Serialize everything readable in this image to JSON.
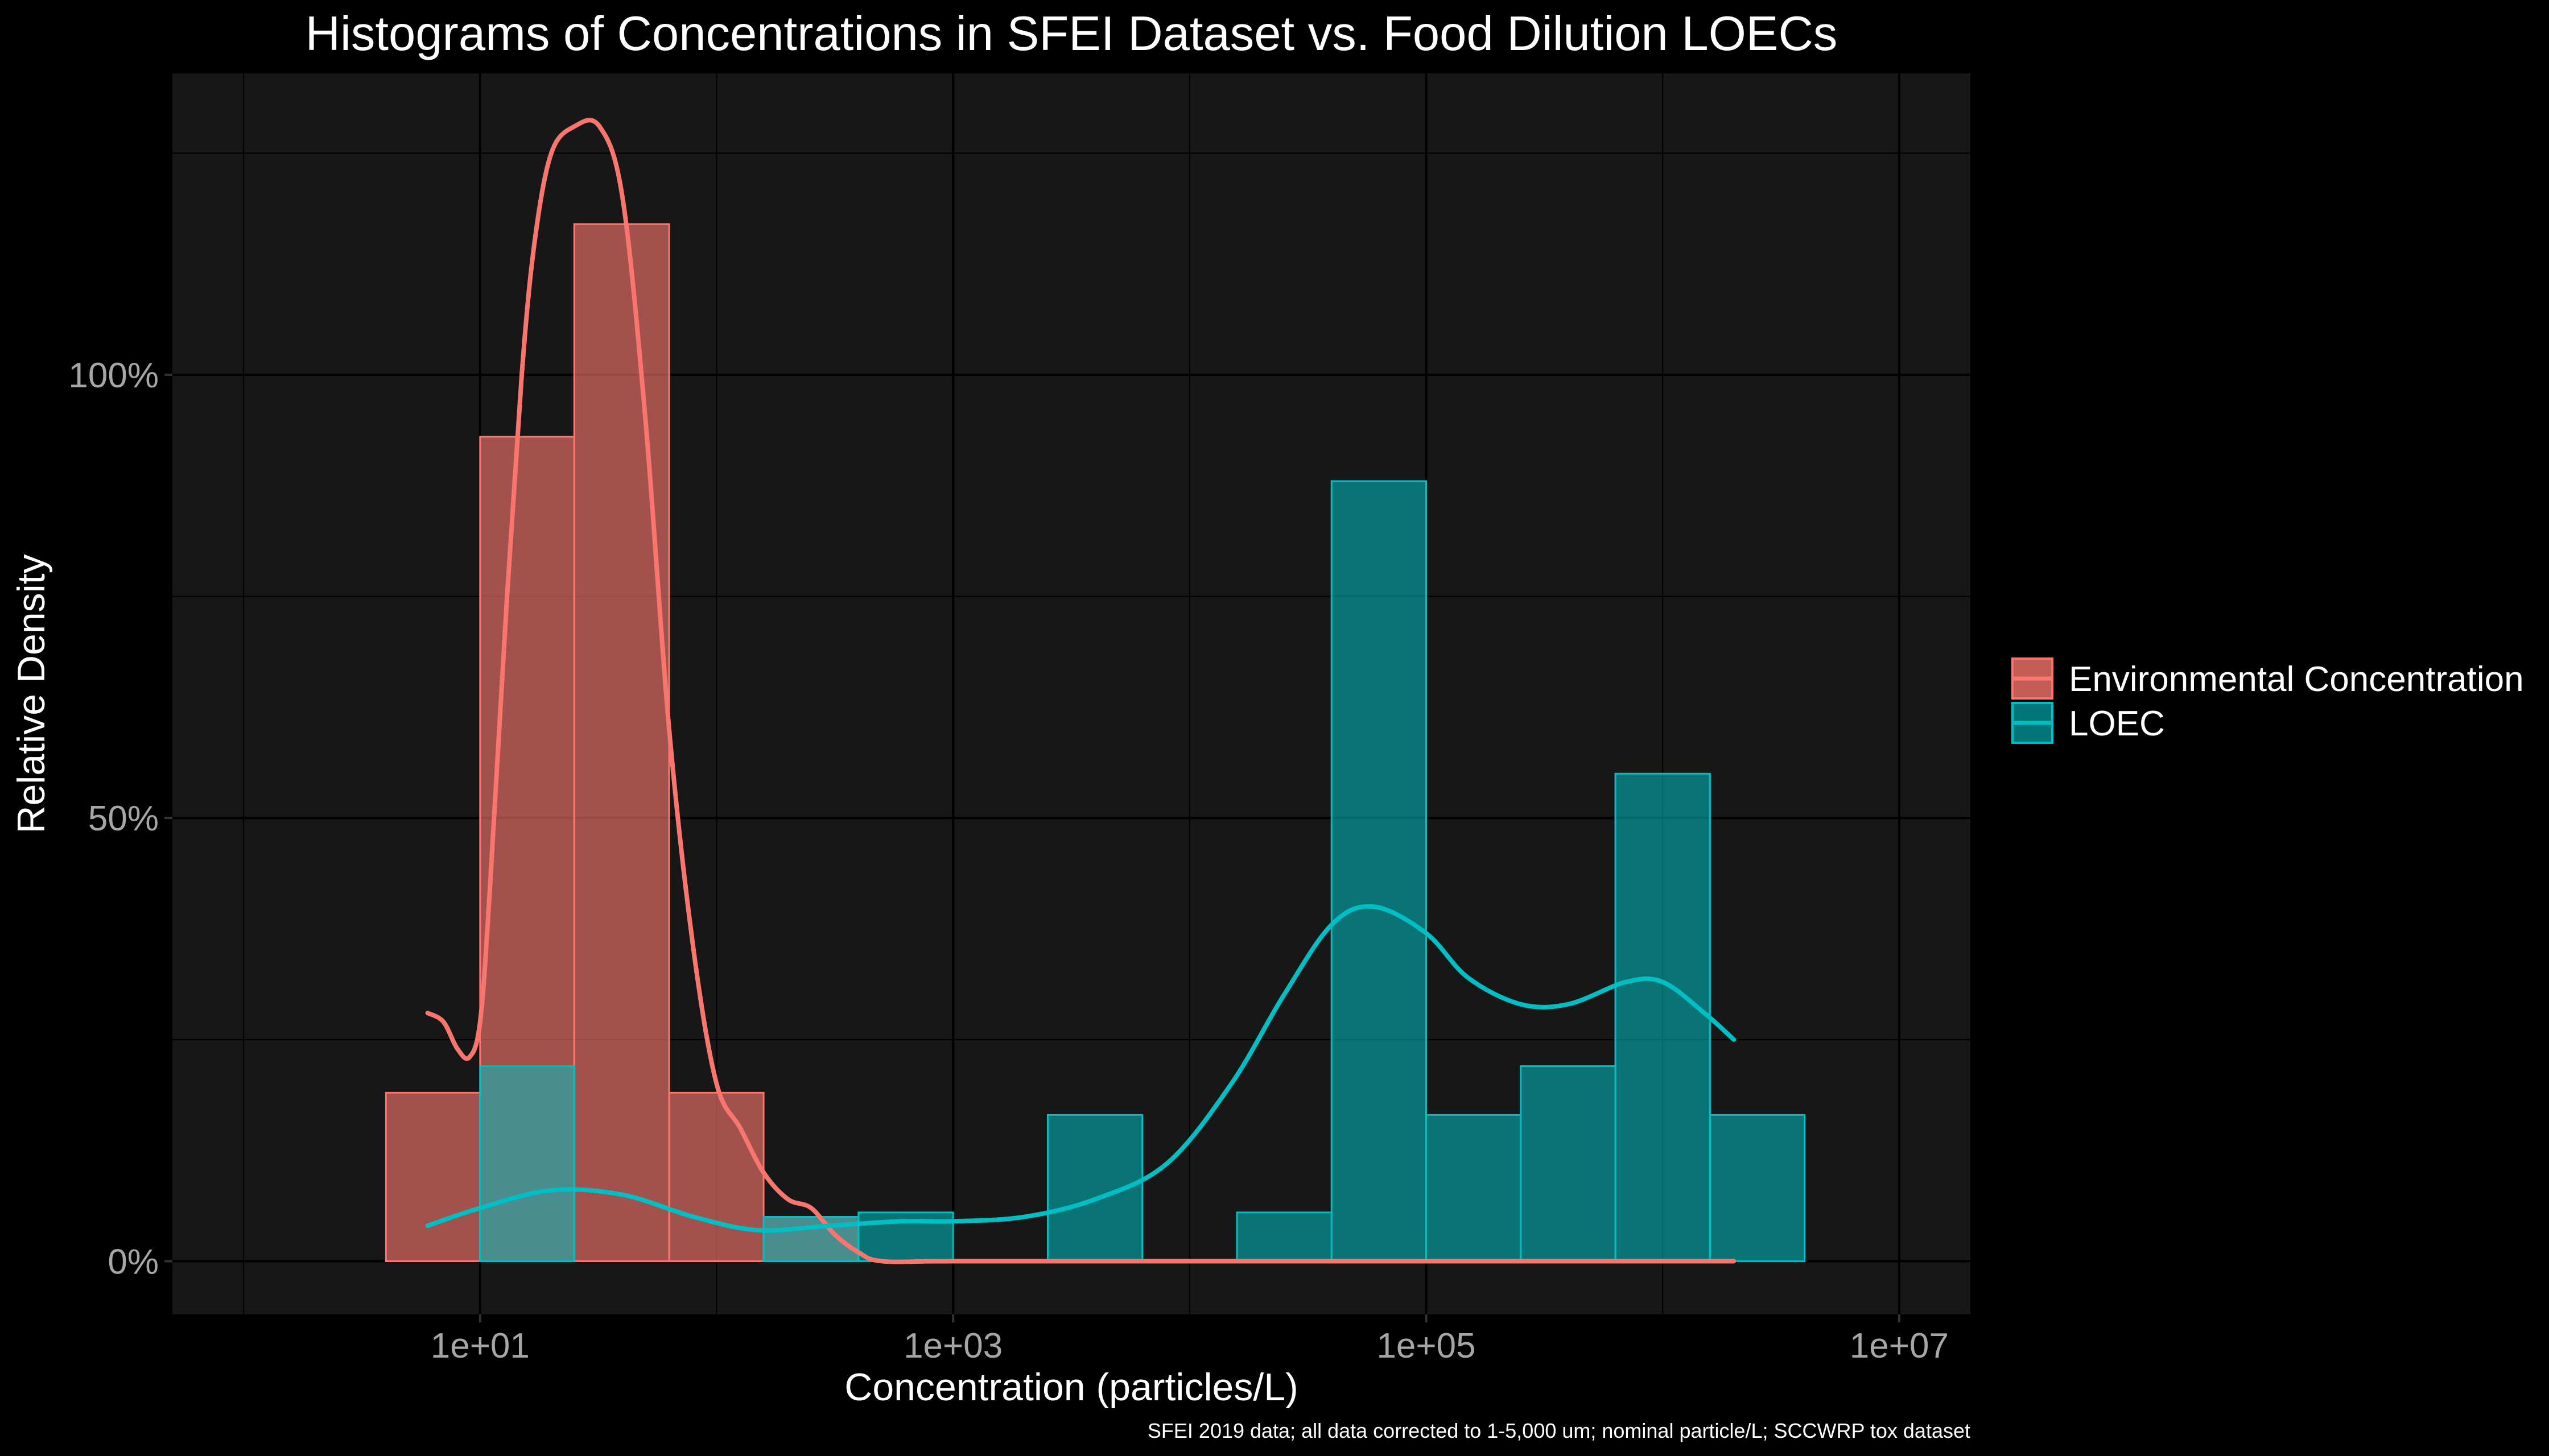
{
  "chart_data": {
    "type": "histogram",
    "title": "Histograms of Concentrations in SFEI Dataset vs. Food Dilution LOECs",
    "xlabel": "Concentration (particles/L)",
    "ylabel": "Relative Density",
    "caption": "SFEI 2019 data; all data corrected to 1-5,000 um; nominal particle/L; SCCWRP tox dataset",
    "x_scale": "log10",
    "xlim": [
      0.5,
      20000000
    ],
    "ylim": [
      -0.06,
      1.34
    ],
    "x_ticks": [
      10,
      1000,
      100000,
      10000000
    ],
    "x_tick_labels": [
      "1e+01",
      "1e+03",
      "1e+05",
      "1e+07"
    ],
    "y_ticks": [
      0,
      0.5,
      1.0
    ],
    "y_tick_labels": [
      "0%",
      "50%",
      "100%"
    ],
    "grid": true,
    "legend_position": "right",
    "series": [
      {
        "name": "Environmental Concentration",
        "color": "#F8766D",
        "bins": [
          {
            "x0": 4,
            "x1": 10,
            "density": 0.19
          },
          {
            "x0": 10,
            "x1": 25,
            "density": 0.93
          },
          {
            "x0": 25,
            "x1": 63,
            "density": 1.17
          },
          {
            "x0": 63,
            "x1": 158,
            "density": 0.19
          },
          {
            "x0": 158,
            "x1": 398,
            "density": 0.05
          }
        ],
        "density_curve": [
          [
            6,
            0.28
          ],
          [
            7,
            0.27
          ],
          [
            8,
            0.24
          ],
          [
            9,
            0.23
          ],
          [
            10,
            0.27
          ],
          [
            11,
            0.42
          ],
          [
            13,
            0.75
          ],
          [
            15,
            1.0
          ],
          [
            17,
            1.15
          ],
          [
            20,
            1.25
          ],
          [
            25,
            1.28
          ],
          [
            32,
            1.28
          ],
          [
            40,
            1.2
          ],
          [
            50,
            0.95
          ],
          [
            63,
            0.6
          ],
          [
            80,
            0.35
          ],
          [
            100,
            0.2
          ],
          [
            126,
            0.15
          ],
          [
            158,
            0.1
          ],
          [
            200,
            0.07
          ],
          [
            251,
            0.06
          ],
          [
            316,
            0.03
          ],
          [
            398,
            0.01
          ],
          [
            501,
            0.0
          ],
          [
            1000,
            0.0
          ],
          [
            10000,
            0.0
          ],
          [
            100000,
            0.0
          ],
          [
            1000000,
            0.0
          ],
          [
            2000000,
            0.0
          ]
        ]
      },
      {
        "name": "LOEC",
        "color": "#00BFC4",
        "bins": [
          {
            "x0": 10,
            "x1": 25,
            "density": 0.22
          },
          {
            "x0": 158,
            "x1": 398,
            "density": 0.05
          },
          {
            "x0": 398,
            "x1": 1000,
            "density": 0.055
          },
          {
            "x0": 2512,
            "x1": 6310,
            "density": 0.165
          },
          {
            "x0": 15849,
            "x1": 39811,
            "density": 0.055
          },
          {
            "x0": 39811,
            "x1": 100000,
            "density": 0.88
          },
          {
            "x0": 100000,
            "x1": 251189,
            "density": 0.165
          },
          {
            "x0": 251189,
            "x1": 630957,
            "density": 0.22
          },
          {
            "x0": 630957,
            "x1": 1584893,
            "density": 0.55
          },
          {
            "x0": 1584893,
            "x1": 3981072,
            "density": 0.165
          }
        ],
        "density_curve": [
          [
            6,
            0.04
          ],
          [
            10,
            0.06
          ],
          [
            20,
            0.08
          ],
          [
            40,
            0.075
          ],
          [
            80,
            0.05
          ],
          [
            150,
            0.035
          ],
          [
            300,
            0.04
          ],
          [
            600,
            0.045
          ],
          [
            1000,
            0.045
          ],
          [
            2000,
            0.05
          ],
          [
            4000,
            0.07
          ],
          [
            8000,
            0.11
          ],
          [
            15000,
            0.2
          ],
          [
            25000,
            0.3
          ],
          [
            40000,
            0.38
          ],
          [
            60000,
            0.4
          ],
          [
            100000,
            0.37
          ],
          [
            150000,
            0.32
          ],
          [
            250000,
            0.29
          ],
          [
            400000,
            0.29
          ],
          [
            700000,
            0.315
          ],
          [
            1000000,
            0.315
          ],
          [
            1500000,
            0.28
          ],
          [
            2000000,
            0.25
          ]
        ]
      }
    ]
  }
}
